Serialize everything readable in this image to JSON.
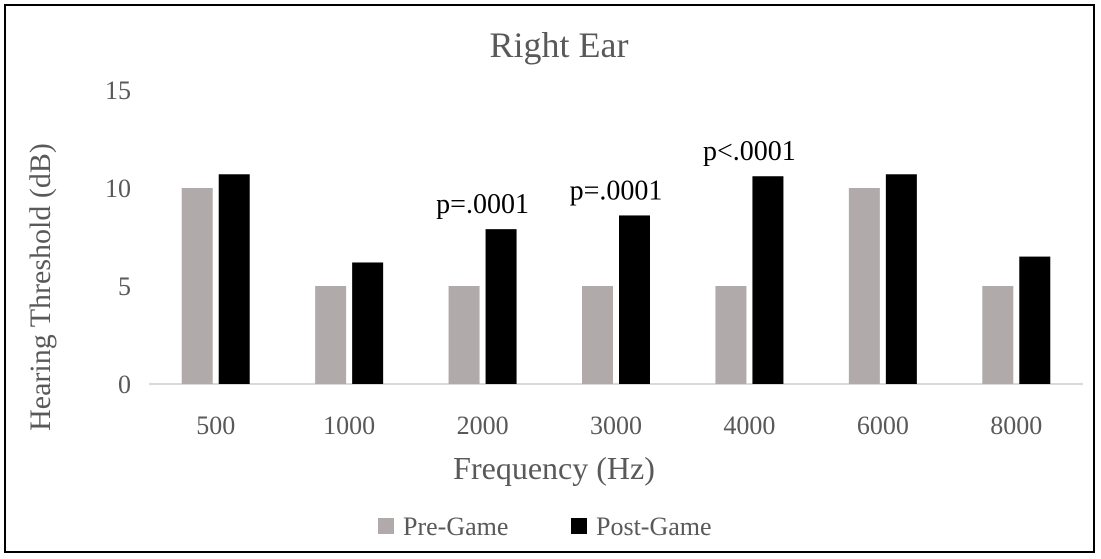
{
  "chart_data": {
    "type": "bar",
    "title": "Right Ear",
    "xlabel": "Frequency (Hz)",
    "ylabel": "Hearing Threshold (dB)",
    "categories": [
      "500",
      "1000",
      "2000",
      "3000",
      "4000",
      "6000",
      "8000"
    ],
    "series": [
      {
        "name": "Pre-Game",
        "color": "#b0abaa",
        "values": [
          10,
          5,
          5,
          5,
          5,
          10,
          5
        ]
      },
      {
        "name": "Post-Game",
        "color": "#000000",
        "values": [
          10.7,
          6.2,
          7.9,
          8.6,
          10.6,
          10.7,
          6.5
        ]
      }
    ],
    "ylim": [
      0,
      15
    ],
    "yticks": [
      0,
      5,
      10,
      15
    ],
    "grid": false,
    "legend": "bottom",
    "annotations": [
      {
        "category": "2000",
        "text": "p=.0001"
      },
      {
        "category": "3000",
        "text": "p=.0001"
      },
      {
        "category": "4000",
        "text": "p<.0001"
      }
    ]
  }
}
